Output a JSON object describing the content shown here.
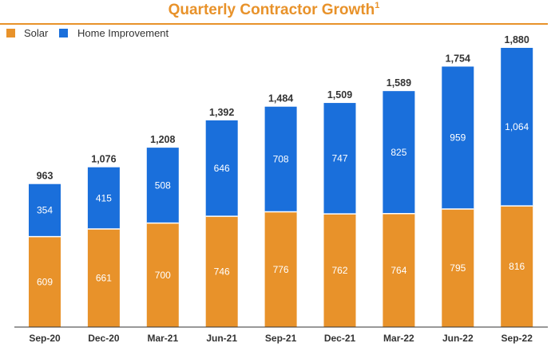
{
  "colors": {
    "solar": "#E8922A",
    "home_improvement": "#1A6FDB",
    "title": "#E8922A",
    "text": "#333333",
    "axis": "#333333"
  },
  "chart_data": {
    "type": "bar",
    "stacked": true,
    "title": "Quarterly Contractor Growth",
    "title_superscript": "1",
    "xlabel": "",
    "ylabel": "",
    "ylim": [
      0,
      1880
    ],
    "grid": false,
    "legend_position": "top-left",
    "categories": [
      "Sep-20",
      "Dec-20",
      "Mar-21",
      "Jun-21",
      "Sep-21",
      "Dec-21",
      "Mar-22",
      "Jun-22",
      "Sep-22"
    ],
    "series": [
      {
        "name": "Solar",
        "color": "#E8922A",
        "values": [
          609,
          661,
          700,
          746,
          776,
          762,
          764,
          795,
          816
        ],
        "labels": [
          "609",
          "661",
          "700",
          "746",
          "776",
          "762",
          "764",
          "795",
          "816"
        ]
      },
      {
        "name": "Home Improvement",
        "color": "#1A6FDB",
        "values": [
          354,
          415,
          508,
          646,
          708,
          747,
          825,
          959,
          1064
        ],
        "labels": [
          "354",
          "415",
          "508",
          "646",
          "708",
          "747",
          "825",
          "959",
          "1,064"
        ]
      }
    ],
    "totals": [
      963,
      1076,
      1208,
      1392,
      1484,
      1509,
      1589,
      1754,
      1880
    ],
    "total_labels": [
      "963",
      "1,076",
      "1,208",
      "1,392",
      "1,484",
      "1,509",
      "1,589",
      "1,754",
      "1,880"
    ]
  }
}
